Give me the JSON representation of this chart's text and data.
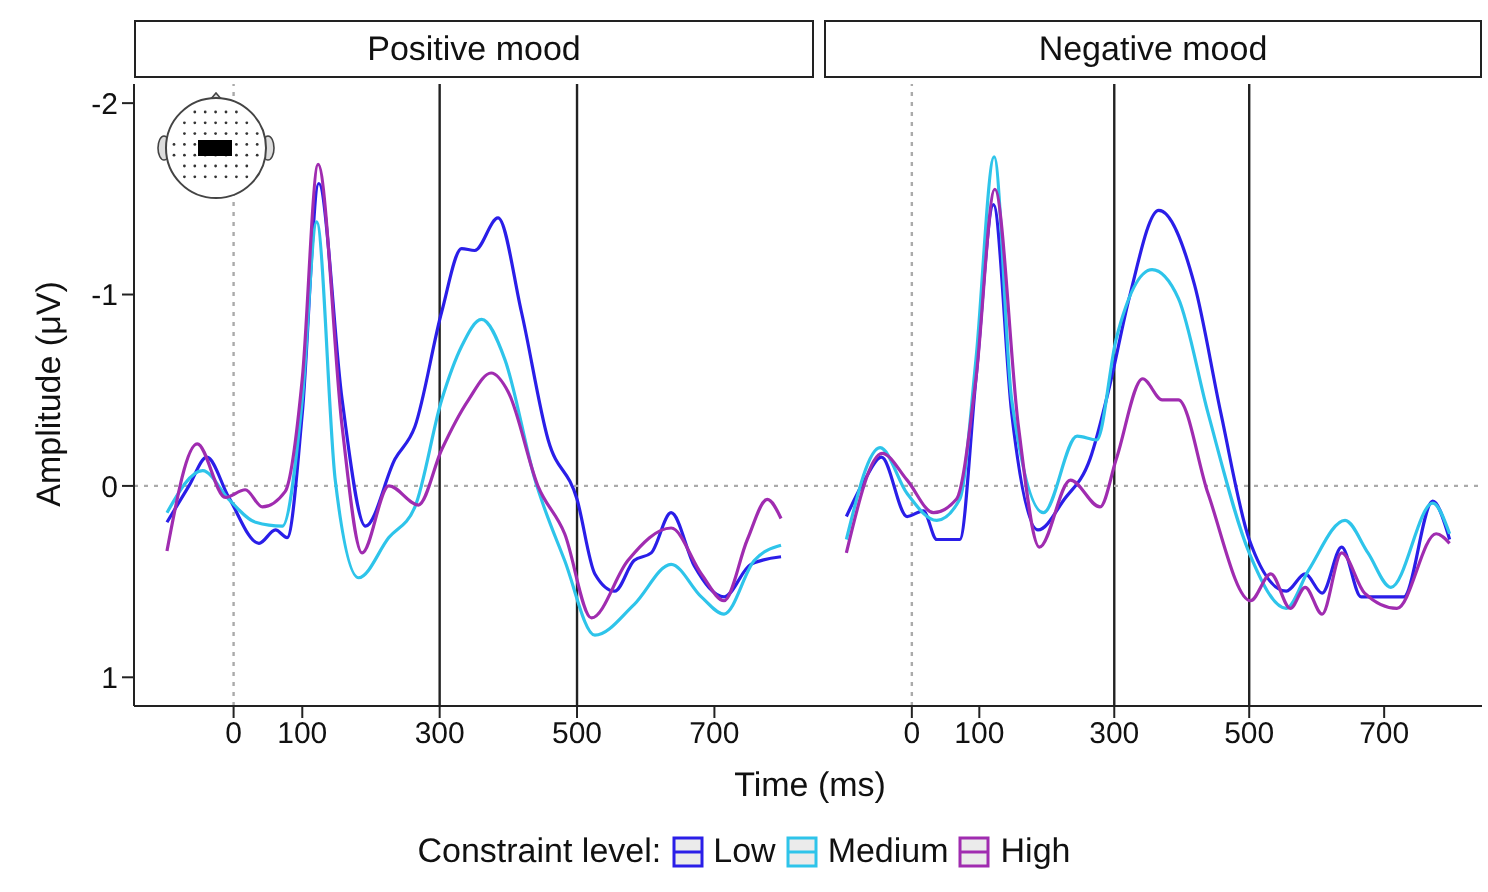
{
  "chart_data": [
    {
      "type": "line",
      "title": "Positive mood",
      "xlabel": "Time (ms)",
      "ylabel": "Amplitude (μV)",
      "legend_title": "Constraint level:",
      "legend": "bottom",
      "marker": "none",
      "line_style": "solid",
      "grid": false,
      "xlim": [
        -145,
        845
      ],
      "xticks": [
        0,
        100,
        300,
        500,
        700
      ],
      "ylim": [
        1.15,
        -2.1
      ],
      "yticks": [
        -2,
        -1,
        0,
        1
      ],
      "ref_lines": [
        {
          "axis": "x",
          "value": 0,
          "color": "#aaaaaa",
          "line_style": "dotted"
        },
        {
          "axis": "x",
          "value": 300,
          "color": "#222222",
          "line_style": "solid"
        },
        {
          "axis": "x",
          "value": 500,
          "color": "#222222",
          "line_style": "solid"
        },
        {
          "axis": "y",
          "value": 0,
          "color": "#aaaaaa",
          "line_style": "dotted"
        }
      ],
      "series": [
        {
          "name": "Low",
          "color": "#2a1ee8",
          "x": [
            -97,
            -65,
            -39,
            -7,
            37,
            61,
            78,
            100,
            124,
            158,
            192,
            235,
            264,
            303,
            332,
            351,
            385,
            419,
            458,
            500,
            526,
            555,
            583,
            608,
            637,
            671,
            714,
            753,
            797
          ],
          "values": [
            0.19,
            0.0,
            -0.15,
            0.06,
            0.3,
            0.23,
            0.27,
            -0.38,
            -1.58,
            -0.45,
            0.21,
            -0.14,
            -0.31,
            -0.91,
            -1.24,
            -1.23,
            -1.4,
            -0.91,
            -0.24,
            0.07,
            0.46,
            0.55,
            0.39,
            0.35,
            0.14,
            0.42,
            0.58,
            0.41,
            0.37
          ]
        },
        {
          "name": "Medium",
          "color": "#2ec4ea",
          "x": [
            -97,
            -45,
            -7,
            32,
            71,
            100,
            121,
            148,
            182,
            226,
            264,
            303,
            332,
            361,
            395,
            439,
            482,
            526,
            583,
            637,
            681,
            714,
            758,
            797
          ],
          "values": [
            0.14,
            -0.08,
            0.07,
            0.19,
            0.21,
            -0.45,
            -1.38,
            -0.03,
            0.48,
            0.27,
            0.11,
            -0.45,
            -0.73,
            -0.87,
            -0.66,
            -0.03,
            0.39,
            0.78,
            0.62,
            0.41,
            0.58,
            0.67,
            0.39,
            0.31
          ]
        },
        {
          "name": "High",
          "color": "#a02cb0",
          "x": [
            -97,
            -53,
            -12,
            17,
            42,
            75,
            100,
            123,
            158,
            187,
            226,
            269,
            303,
            342,
            375,
            400,
            443,
            482,
            521,
            574,
            637,
            681,
            714,
            748,
            777,
            797
          ],
          "values": [
            0.34,
            -0.22,
            0.06,
            0.02,
            0.11,
            0.03,
            -0.56,
            -1.68,
            -0.31,
            0.35,
            0.0,
            0.1,
            -0.19,
            -0.45,
            -0.59,
            -0.49,
            0.0,
            0.25,
            0.69,
            0.39,
            0.22,
            0.46,
            0.6,
            0.28,
            0.07,
            0.17
          ]
        }
      ]
    },
    {
      "type": "line",
      "title": "Negative mood",
      "marker": "none",
      "line_style": "solid",
      "grid": false,
      "tick_labels": "x",
      "xlim": [
        -145,
        845
      ],
      "xticks": [
        0,
        100,
        300,
        500,
        700
      ],
      "ylim": [
        1.15,
        -2.1
      ],
      "yticks": [
        -2,
        -1,
        0,
        1
      ],
      "ref_lines": [
        {
          "axis": "x",
          "value": 0,
          "color": "#aaaaaa",
          "line_style": "dotted"
        },
        {
          "axis": "x",
          "value": 300,
          "color": "#222222",
          "line_style": "solid"
        },
        {
          "axis": "x",
          "value": 500,
          "color": "#222222",
          "line_style": "solid"
        },
        {
          "axis": "y",
          "value": 0,
          "color": "#aaaaaa",
          "line_style": "dotted"
        }
      ],
      "series": [
        {
          "color": "#2a1ee8",
          "x": [
            -97,
            -70,
            -45,
            -7,
            17,
            37,
            71,
            95,
            121,
            148,
            187,
            226,
            264,
            293,
            322,
            366,
            419,
            458,
            500,
            555,
            583,
            608,
            637,
            666,
            729,
            772,
            797
          ],
          "values": [
            0.16,
            -0.03,
            -0.15,
            0.16,
            0.13,
            0.28,
            0.28,
            -0.56,
            -1.47,
            -0.38,
            0.23,
            0.07,
            -0.14,
            -0.52,
            -0.98,
            -1.44,
            -1.05,
            -0.38,
            0.28,
            0.55,
            0.46,
            0.56,
            0.32,
            0.58,
            0.58,
            0.08,
            0.28
          ]
        },
        {
          "color": "#2ec4ea",
          "x": [
            -97,
            -47,
            -7,
            37,
            71,
            95,
            122,
            148,
            195,
            245,
            274,
            303,
            356,
            395,
            439,
            500,
            555,
            588,
            642,
            676,
            710,
            772,
            797
          ],
          "values": [
            0.28,
            -0.2,
            0.04,
            0.18,
            0.07,
            -0.66,
            -1.72,
            -0.45,
            0.14,
            -0.26,
            -0.24,
            -0.77,
            -1.13,
            -0.98,
            -0.38,
            0.35,
            0.64,
            0.44,
            0.18,
            0.35,
            0.53,
            0.09,
            0.25
          ]
        },
        {
          "color": "#a02cb0",
          "x": [
            -97,
            -44,
            -7,
            32,
            66,
            95,
            123,
            158,
            189,
            235,
            279,
            303,
            342,
            371,
            395,
            439,
            502,
            532,
            561,
            583,
            608,
            637,
            671,
            719,
            777,
            797
          ],
          "values": [
            0.35,
            -0.17,
            -0.03,
            0.14,
            0.07,
            -0.56,
            -1.55,
            -0.31,
            0.32,
            -0.03,
            0.11,
            -0.14,
            -0.56,
            -0.45,
            -0.45,
            0.04,
            0.6,
            0.46,
            0.64,
            0.53,
            0.67,
            0.35,
            0.56,
            0.64,
            0.25,
            0.3
          ]
        }
      ]
    }
  ]
}
